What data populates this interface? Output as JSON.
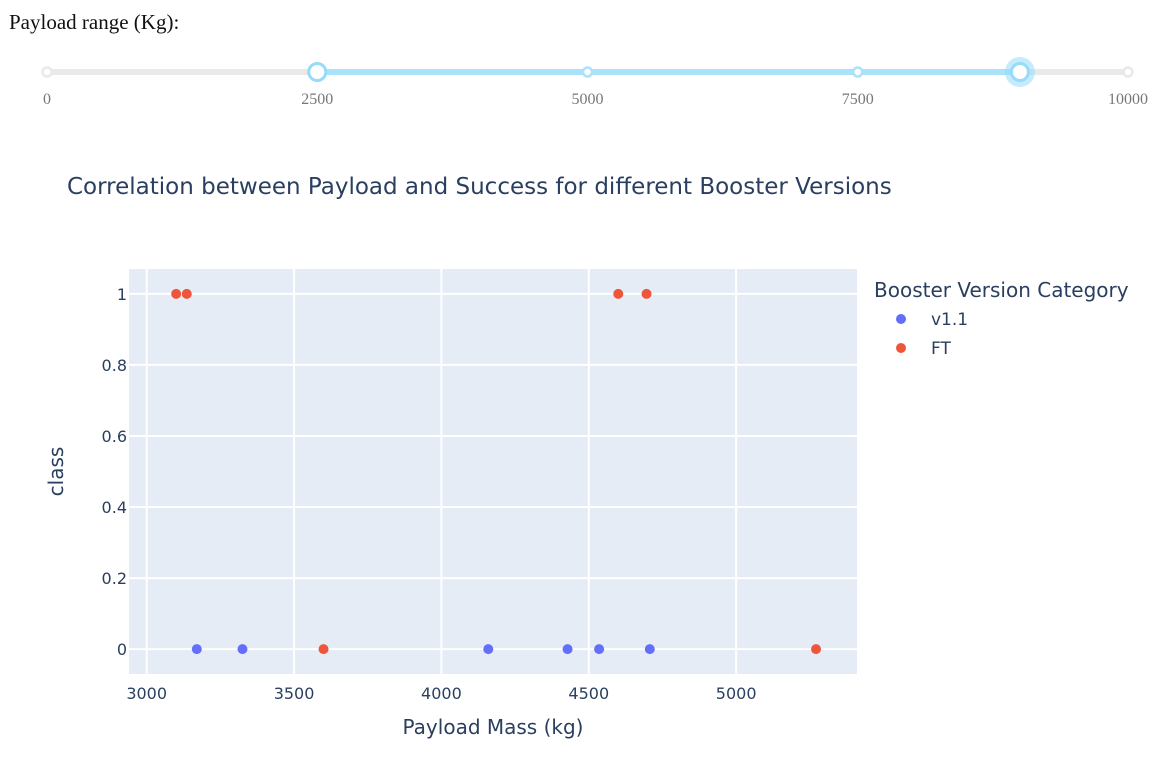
{
  "slider": {
    "label": "Payload range (Kg):",
    "min": 0,
    "max": 10000,
    "value": [
      2500,
      9000
    ],
    "marks": [
      {
        "value": 0,
        "label": "0"
      },
      {
        "value": 2500,
        "label": "2500"
      },
      {
        "value": 5000,
        "label": "5000"
      },
      {
        "value": 7500,
        "label": "7500"
      },
      {
        "value": 10000,
        "label": "10000"
      }
    ],
    "colors": {
      "rail": "#e9e9e9",
      "track": "#abe2fb",
      "handle": "#96dbfa"
    }
  },
  "chart_data": {
    "type": "scatter",
    "title": "Correlation between Payload and Success for different Booster Versions",
    "xlabel": "Payload Mass (kg)",
    "ylabel": "class",
    "xlim": [
      2940,
      5410
    ],
    "ylim": [
      -0.07,
      1.07
    ],
    "xticks": [
      3000,
      3500,
      4000,
      4500,
      5000
    ],
    "yticks": [
      0,
      0.2,
      0.4,
      0.6,
      0.8,
      1
    ],
    "grid": true,
    "legend": {
      "title": "Booster Version Category",
      "placement": "right"
    },
    "colors": {
      "plot_bg": "#e5ecf6",
      "grid": "#ffffff",
      "text": "#2a3f5f"
    },
    "series": [
      {
        "name": "v1.1",
        "color": "#636efa",
        "points": [
          [
            3170,
            0
          ],
          [
            3325,
            0
          ],
          [
            4159,
            0
          ],
          [
            4428,
            0
          ],
          [
            4535,
            0
          ],
          [
            4707,
            0
          ]
        ]
      },
      {
        "name": "FT",
        "color": "#ef553b",
        "points": [
          [
            3100,
            1
          ],
          [
            3136,
            1
          ],
          [
            4600,
            1
          ],
          [
            4696,
            1
          ],
          [
            3600,
            0
          ],
          [
            5271,
            0
          ]
        ]
      }
    ]
  }
}
